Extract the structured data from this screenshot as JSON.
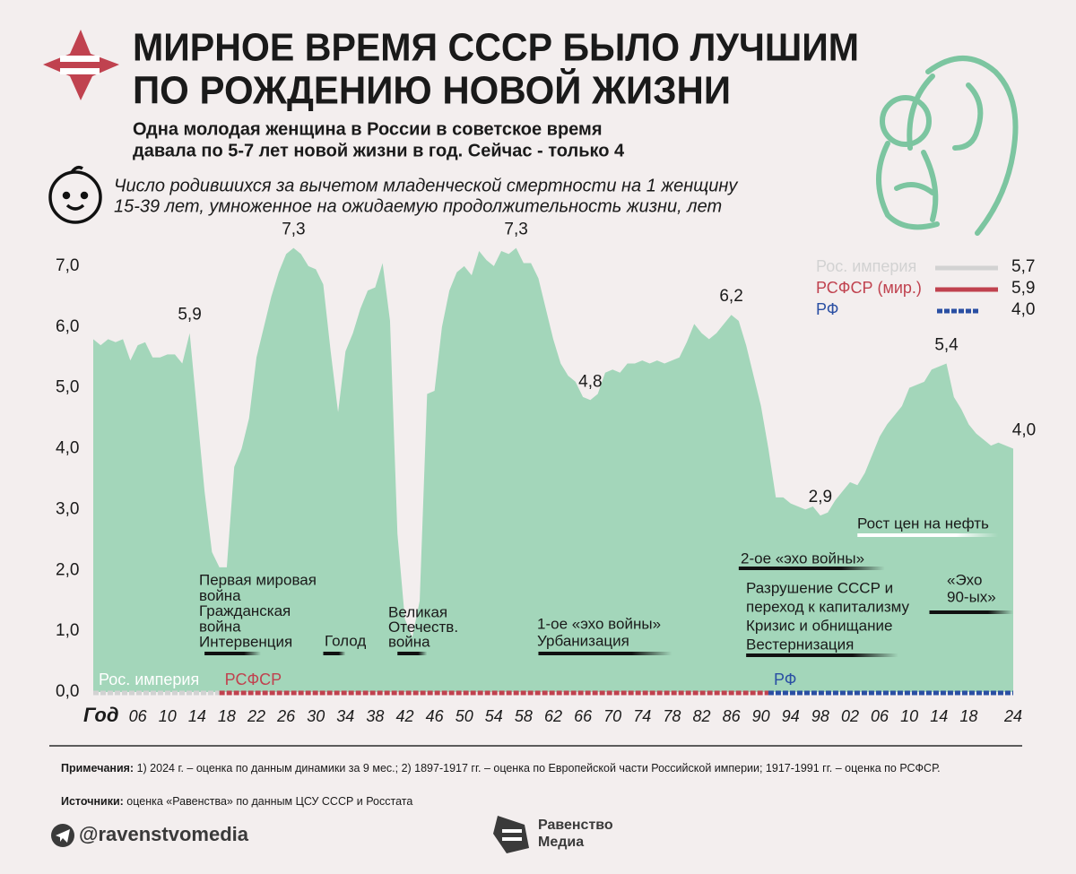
{
  "header": {
    "title": [
      "МИРНОЕ ВРЕМЯ СССР БЫЛО ЛУЧШИМ",
      "ПО РОЖДЕНИЮ НОВОЙ ЖИЗНИ"
    ],
    "subtitle": [
      "Одна молодая женщина в России в советское время",
      "давала по 5-7 лет новой жизни в год. Сейчас - только 4"
    ],
    "description": [
      "Число родившихся за вычетом младенческой смертности на 1 женщину",
      "15-39 лет, умноженное на ожидаемую продолжительность жизни, лет"
    ]
  },
  "chart_data": {
    "type": "area",
    "color": "#a3d6ba",
    "x": [
      1900,
      1901,
      1902,
      1903,
      1904,
      1905,
      1906,
      1907,
      1908,
      1909,
      1910,
      1911,
      1912,
      1913,
      1914,
      1915,
      1916,
      1917,
      1918,
      1919,
      1920,
      1921,
      1922,
      1923,
      1924,
      1925,
      1926,
      1927,
      1928,
      1929,
      1930,
      1931,
      1932,
      1933,
      1934,
      1935,
      1936,
      1937,
      1938,
      1939,
      1940,
      1941,
      1942,
      1943,
      1944,
      1945,
      1946,
      1947,
      1948,
      1949,
      1950,
      1951,
      1952,
      1953,
      1954,
      1955,
      1956,
      1957,
      1958,
      1959,
      1960,
      1961,
      1962,
      1963,
      1964,
      1965,
      1966,
      1967,
      1968,
      1969,
      1970,
      1971,
      1972,
      1973,
      1974,
      1975,
      1976,
      1977,
      1978,
      1979,
      1980,
      1981,
      1982,
      1983,
      1984,
      1985,
      1986,
      1987,
      1988,
      1989,
      1990,
      1991,
      1992,
      1993,
      1994,
      1995,
      1996,
      1997,
      1998,
      1999,
      2000,
      2001,
      2002,
      2003,
      2004,
      2005,
      2006,
      2007,
      2008,
      2009,
      2010,
      2011,
      2012,
      2013,
      2014,
      2015,
      2016,
      2017,
      2018,
      2019,
      2020,
      2021,
      2022,
      2023,
      2024
    ],
    "values": [
      5.8,
      5.7,
      5.8,
      5.75,
      5.8,
      5.45,
      5.7,
      5.75,
      5.5,
      5.5,
      5.55,
      5.55,
      5.4,
      5.9,
      4.6,
      3.3,
      2.3,
      2.05,
      2.05,
      3.7,
      4.0,
      4.5,
      5.5,
      6.0,
      6.5,
      6.9,
      7.2,
      7.3,
      7.2,
      7.0,
      6.95,
      6.7,
      5.6,
      4.6,
      5.6,
      5.9,
      6.3,
      6.6,
      6.65,
      7.05,
      6.1,
      2.6,
      1.2,
      0.9,
      1.5,
      4.9,
      4.95,
      6.0,
      6.6,
      6.9,
      7.0,
      6.85,
      7.25,
      7.1,
      7.0,
      7.25,
      7.2,
      7.3,
      7.05,
      7.05,
      6.8,
      6.3,
      5.8,
      5.4,
      5.2,
      5.1,
      4.85,
      4.8,
      4.9,
      5.25,
      5.3,
      5.25,
      5.4,
      5.4,
      5.45,
      5.4,
      5.45,
      5.4,
      5.45,
      5.5,
      5.75,
      6.05,
      5.9,
      5.8,
      5.9,
      6.05,
      6.2,
      6.1,
      5.7,
      5.2,
      4.7,
      4.0,
      3.2,
      3.2,
      3.1,
      3.05,
      3.0,
      3.05,
      2.9,
      2.95,
      3.15,
      3.3,
      3.45,
      3.4,
      3.6,
      3.9,
      4.2,
      4.4,
      4.55,
      4.7,
      5.0,
      5.05,
      5.1,
      5.3,
      5.35,
      5.4,
      4.85,
      4.65,
      4.4,
      4.25,
      4.15,
      4.05,
      4.1,
      4.05,
      4.0
    ],
    "xlim": [
      1900,
      2024
    ],
    "ylim": [
      0,
      7.5
    ],
    "x_axis_label": "Год",
    "xticks": [
      {
        "value": 1906,
        "label": "06"
      },
      {
        "value": 1910,
        "label": "10"
      },
      {
        "value": 1914,
        "label": "14"
      },
      {
        "value": 1918,
        "label": "18"
      },
      {
        "value": 1922,
        "label": "22"
      },
      {
        "value": 1926,
        "label": "26"
      },
      {
        "value": 1930,
        "label": "30"
      },
      {
        "value": 1934,
        "label": "34"
      },
      {
        "value": 1938,
        "label": "38"
      },
      {
        "value": 1942,
        "label": "42"
      },
      {
        "value": 1946,
        "label": "46"
      },
      {
        "value": 1950,
        "label": "50"
      },
      {
        "value": 1954,
        "label": "54"
      },
      {
        "value": 1958,
        "label": "58"
      },
      {
        "value": 1962,
        "label": "62"
      },
      {
        "value": 1966,
        "label": "66"
      },
      {
        "value": 1970,
        "label": "70"
      },
      {
        "value": 1974,
        "label": "74"
      },
      {
        "value": 1978,
        "label": "78"
      },
      {
        "value": 1982,
        "label": "82"
      },
      {
        "value": 1986,
        "label": "86"
      },
      {
        "value": 1990,
        "label": "90"
      },
      {
        "value": 1994,
        "label": "94"
      },
      {
        "value": 1998,
        "label": "98"
      },
      {
        "value": 2002,
        "label": "02"
      },
      {
        "value": 2006,
        "label": "06"
      },
      {
        "value": 2010,
        "label": "10"
      },
      {
        "value": 2014,
        "label": "14"
      },
      {
        "value": 2018,
        "label": "18"
      },
      {
        "value": 2024,
        "label": "24"
      }
    ],
    "yticks": [
      {
        "value": 0,
        "label": "0,0"
      },
      {
        "value": 1,
        "label": "1,0"
      },
      {
        "value": 2,
        "label": "2,0"
      },
      {
        "value": 3,
        "label": "3,0"
      },
      {
        "value": 4,
        "label": "4,0"
      },
      {
        "value": 5,
        "label": "5,0"
      },
      {
        "value": 6,
        "label": "6,0"
      },
      {
        "value": 7,
        "label": "7,0"
      }
    ],
    "legend": [
      {
        "name": "Рос. империя",
        "color": "#d2d2d2",
        "value": 5.7,
        "label": "5,7",
        "dashed": false
      },
      {
        "name": "РСФСР (мир.)",
        "color": "#c0424f",
        "value": 5.9,
        "label": "5,9",
        "dashed": false
      },
      {
        "name": "РФ",
        "color": "#2a4fa3",
        "value": 4.0,
        "label": "4,0",
        "dashed": true
      }
    ],
    "periods": [
      {
        "label": "Рос. империя",
        "start": 1900,
        "end": 1917,
        "color": "#d2d2d2",
        "text_color": "#ffffff"
      },
      {
        "label": "РСФСР",
        "start": 1917,
        "end": 1991,
        "color": "#c0424f",
        "text_color": "#c0424f"
      },
      {
        "label": "РФ",
        "start": 1991,
        "end": 2024,
        "color": "#2a4fa3",
        "text_color": "#2a4fa3"
      }
    ],
    "point_labels": [
      {
        "year": 1913,
        "value": 5.9,
        "label": "5,9"
      },
      {
        "year": 1927,
        "value": 7.3,
        "label": "7,3"
      },
      {
        "year": 1957,
        "value": 7.3,
        "label": "7,3"
      },
      {
        "year": 1967,
        "value": 4.8,
        "label": "4,8"
      },
      {
        "year": 1986,
        "value": 6.2,
        "label": "6,2"
      },
      {
        "year": 1998,
        "value": 2.9,
        "label": "2,9"
      },
      {
        "year": 2015,
        "value": 5.4,
        "label": "5,4"
      },
      {
        "year": 2024,
        "value": 4.0,
        "label": "4,0"
      }
    ],
    "events": [
      {
        "lines": [
          "Первая мировая",
          "война",
          "Гражданская",
          "война",
          "Интервенция"
        ],
        "start": 1915,
        "end": 1922.6,
        "color": "#111111"
      },
      {
        "lines": [
          "Голод"
        ],
        "start": 1931,
        "end": 1934,
        "color": "#111111"
      },
      {
        "lines": [
          "Великая",
          "Отечеств.",
          "война"
        ],
        "start": 1941,
        "end": 1945,
        "color": "#111111"
      },
      {
        "lines": [
          "1-ое «эхо войны»",
          "Урбанизация"
        ],
        "start": 1960,
        "end": 1978,
        "color": "#111111"
      },
      {
        "lines": [
          "Рост цен на нефть"
        ],
        "start": 2003,
        "end": 2022,
        "color": "#ffffff"
      },
      {
        "lines": [
          "2-ое «эхо войны»"
        ],
        "start": 1987,
        "end": 2006.7,
        "color": "#111111"
      },
      {
        "lines": [
          "«Эхо",
          "90-ых»"
        ],
        "start": 2012.7,
        "end": 2024,
        "color": "#111111"
      },
      {
        "lines": [
          "Разрушение СССР и",
          "переход к капитализму",
          "Кризис и обнищание",
          "Вестернизация"
        ],
        "start": 1988,
        "end": 2008.5,
        "color": "#111111"
      }
    ]
  },
  "footer": {
    "notes_label": "Примечания:",
    "notes": "1) 2024 г. – оценка по данным динамики за 9 мес.; 2) 1897-1917 гг. – оценка по Европейской части Российской империи; 1917-1991 гг. – оценка по РСФСР.",
    "sources_label": "Источники:",
    "sources": "оценка «Равенства» по данным ЦСУ СССР и Росстата",
    "handle": "@ravenstvomedia",
    "logo": [
      "Равенство",
      "Медиа"
    ]
  }
}
